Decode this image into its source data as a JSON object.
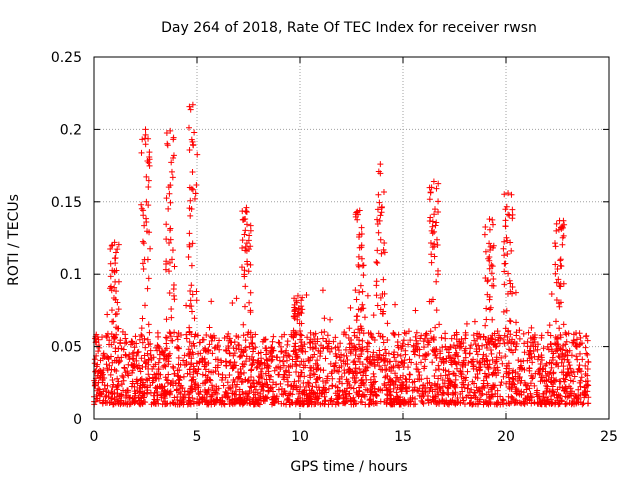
{
  "chart_data": {
    "type": "scatter",
    "title": "Day 264 of 2018, Rate Of TEC Index for receiver rwsn",
    "xlabel": "GPS time / hours",
    "ylabel": "ROTI / TECUs",
    "xlim": [
      0,
      25
    ],
    "ylim": [
      0,
      0.25
    ],
    "xticks": [
      "0",
      "5",
      "10",
      "15",
      "20",
      "25"
    ],
    "yticks": [
      "0",
      "0.05",
      "0.1",
      "0.15",
      "0.2",
      "0.25"
    ],
    "grid": true,
    "marker": "+",
    "color": "#ff0000",
    "series": [
      {
        "name": "ROTI",
        "baseline_min": 0.01,
        "baseline_max": 0.06,
        "x_range": [
          0,
          24
        ],
        "peaks": [
          {
            "x": 2.5,
            "y": 0.2
          },
          {
            "x": 3.7,
            "y": 0.199
          },
          {
            "x": 4.8,
            "y": 0.217
          },
          {
            "x": 7.4,
            "y": 0.146
          },
          {
            "x": 13.9,
            "y": 0.176
          },
          {
            "x": 16.5,
            "y": 0.164
          },
          {
            "x": 19.2,
            "y": 0.138
          },
          {
            "x": 20.1,
            "y": 0.156
          },
          {
            "x": 22.6,
            "y": 0.137
          },
          {
            "x": 1.0,
            "y": 0.122
          },
          {
            "x": 9.9,
            "y": 0.085
          },
          {
            "x": 12.9,
            "y": 0.144
          }
        ]
      }
    ]
  }
}
